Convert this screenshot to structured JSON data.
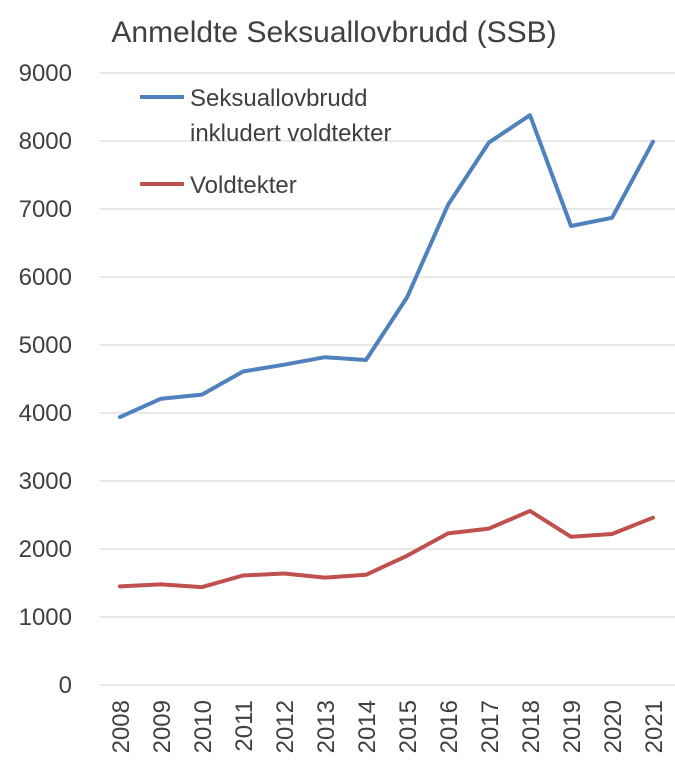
{
  "chart_data": {
    "type": "line",
    "title": "Anmeldte Seksuallovbrudd (SSB)",
    "xlabel": "",
    "ylabel": "",
    "categories": [
      "2008",
      "2009",
      "2010",
      "2011",
      "2012",
      "2013",
      "2014",
      "2015",
      "2016",
      "2017",
      "2018",
      "2019",
      "2020",
      "2021"
    ],
    "ylim": [
      0,
      9000
    ],
    "yticks": [
      "0",
      "1000",
      "2000",
      "3000",
      "4000",
      "5000",
      "6000",
      "7000",
      "8000",
      "9000"
    ],
    "grid": true,
    "legend_position": "top-left",
    "series": [
      {
        "name_lines": [
          "Seksuallovbrudd",
          "inkludert voldtekter"
        ],
        "color": "#4f81bd",
        "values": [
          3940,
          4210,
          4270,
          4610,
          4710,
          4820,
          4780,
          5700,
          7060,
          7980,
          8380,
          6750,
          6870,
          7990
        ]
      },
      {
        "name_lines": [
          "Voldtekter"
        ],
        "color": "#c0504d",
        "values": [
          1450,
          1480,
          1440,
          1610,
          1640,
          1580,
          1620,
          1900,
          2230,
          2300,
          2560,
          2180,
          2220,
          2460
        ]
      }
    ]
  }
}
